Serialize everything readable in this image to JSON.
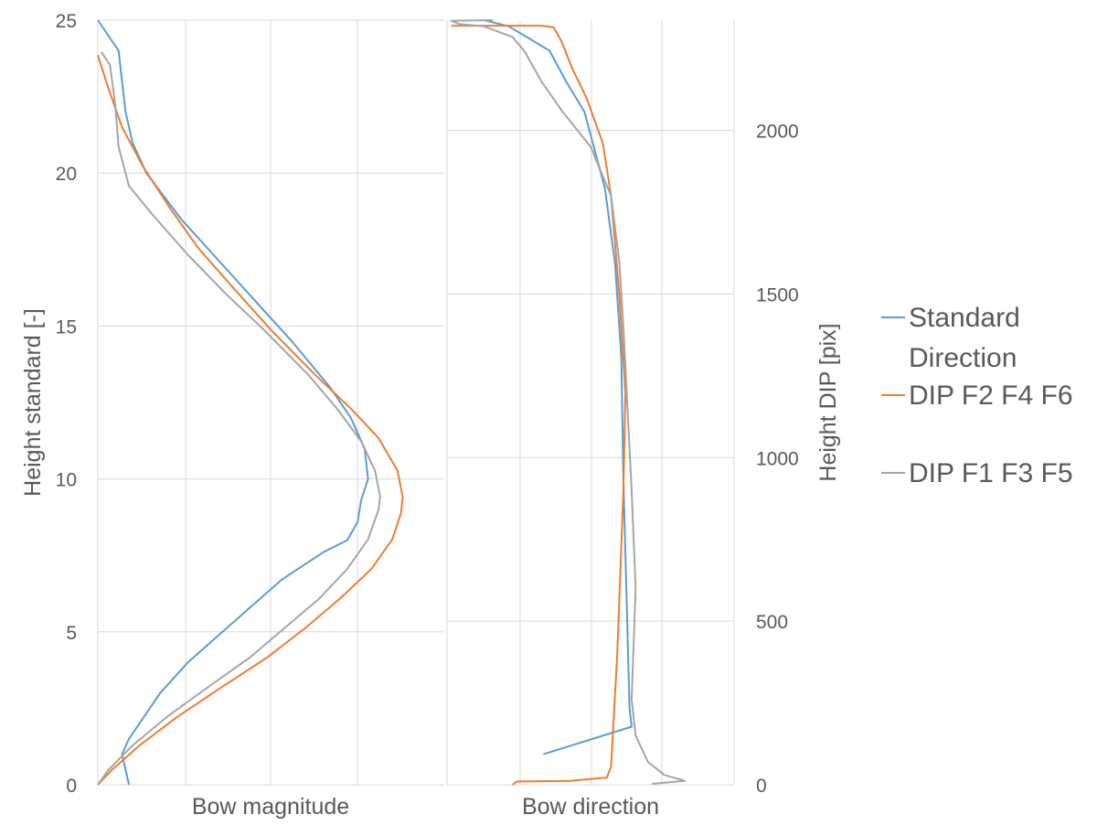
{
  "chart_data": [
    {
      "type": "line",
      "xlabel": "Bow magnitude",
      "ylabel": "Height standard [-]",
      "ylim": [
        0,
        25
      ],
      "yticks": [
        "0",
        "5",
        "10",
        "15",
        "20",
        "25"
      ],
      "grid": true,
      "series": [
        {
          "name": "Standard Direction",
          "color": "#5b9bd5",
          "axis": "left",
          "points": [
            [
              0.9,
              0
            ],
            [
              0.7,
              1
            ],
            [
              0.9,
              1.5
            ],
            [
              1.2,
              2
            ],
            [
              1.8,
              3
            ],
            [
              2.6,
              4
            ],
            [
              3.6,
              5
            ],
            [
              4.6,
              6
            ],
            [
              5.3,
              6.7
            ],
            [
              5.7,
              7
            ],
            [
              6.5,
              7.6
            ],
            [
              7.2,
              8
            ],
            [
              7.5,
              8.6
            ],
            [
              7.6,
              9.3
            ],
            [
              7.8,
              10
            ],
            [
              7.7,
              11
            ],
            [
              7.3,
              12
            ],
            [
              6.7,
              13
            ],
            [
              5.6,
              14.5
            ],
            [
              4.8,
              15.5
            ],
            [
              3.6,
              17
            ],
            [
              2.4,
              18.5
            ],
            [
              1.4,
              20
            ],
            [
              1.0,
              21
            ],
            [
              0.8,
              22
            ],
            [
              0.7,
              23
            ],
            [
              0.6,
              24
            ],
            [
              0.0,
              25
            ]
          ]
        },
        {
          "name": "DIP F2 F4 F6",
          "color": "#ed7d31",
          "axis": "right",
          "points": [
            [
              0.0,
              0
            ],
            [
              0.4,
              45
            ],
            [
              1.2,
              120
            ],
            [
              2.3,
              208
            ],
            [
              3.6,
              300
            ],
            [
              4.9,
              390
            ],
            [
              6.0,
              480
            ],
            [
              7.0,
              570
            ],
            [
              7.9,
              660
            ],
            [
              8.5,
              750
            ],
            [
              8.75,
              830
            ],
            [
              8.8,
              880
            ],
            [
              8.65,
              960
            ],
            [
              8.1,
              1060
            ],
            [
              7.3,
              1150
            ],
            [
              6.3,
              1250
            ],
            [
              5.0,
              1390
            ],
            [
              3.9,
              1520
            ],
            [
              2.9,
              1640
            ],
            [
              2.1,
              1760
            ],
            [
              1.3,
              1890
            ],
            [
              0.7,
              2010
            ],
            [
              0.3,
              2130
            ],
            [
              0.0,
              2230
            ]
          ]
        },
        {
          "name": "DIP F1 F3 F5",
          "color": "#a5a5a5",
          "axis": "right",
          "points": [
            [
              0.0,
              0
            ],
            [
              0.3,
              45
            ],
            [
              1.0,
              120
            ],
            [
              2.0,
              208
            ],
            [
              3.2,
              300
            ],
            [
              4.4,
              390
            ],
            [
              5.4,
              480
            ],
            [
              6.4,
              570
            ],
            [
              7.2,
              660
            ],
            [
              7.8,
              750
            ],
            [
              8.1,
              840
            ],
            [
              8.15,
              880
            ],
            [
              8.0,
              960
            ],
            [
              7.6,
              1050
            ],
            [
              6.9,
              1150
            ],
            [
              6.1,
              1250
            ],
            [
              4.8,
              1390
            ],
            [
              3.7,
              1500
            ],
            [
              2.6,
              1620
            ],
            [
              1.6,
              1740
            ],
            [
              0.9,
              1830
            ],
            [
              0.6,
              1950
            ],
            [
              0.5,
              2080
            ],
            [
              0.35,
              2200
            ],
            [
              0.1,
              2240
            ]
          ]
        }
      ]
    },
    {
      "type": "line",
      "xlabel": "Bow direction",
      "ylabel": "Height DIP [pix]",
      "ylim": [
        0,
        2337
      ],
      "yticks": [
        "0",
        "500",
        "1000",
        "1500",
        "2000"
      ],
      "grid": true,
      "series": [
        {
          "name": "Standard Direction",
          "color": "#5b9bd5",
          "axis": "left",
          "points": [
            [
              2.35,
              1
            ],
            [
              4.5,
              1.9
            ],
            [
              4.45,
              2.5
            ],
            [
              4.4,
              5
            ],
            [
              4.3,
              10
            ],
            [
              4.25,
              14
            ],
            [
              4.1,
              17
            ],
            [
              3.85,
              19.5
            ],
            [
              3.35,
              22
            ],
            [
              2.9,
              23
            ],
            [
              2.5,
              24
            ],
            [
              1.5,
              24.8
            ],
            [
              0.9,
              25
            ]
          ]
        },
        {
          "name": "DIP F2 F4 F6",
          "color": "#ed7d31",
          "axis": "right",
          "points": [
            [
              1.6,
              0
            ],
            [
              1.7,
              10
            ],
            [
              3.0,
              12
            ],
            [
              3.9,
              22
            ],
            [
              4.0,
              55
            ],
            [
              4.15,
              400
            ],
            [
              4.3,
              900
            ],
            [
              4.35,
              1200
            ],
            [
              4.2,
              1500
            ],
            [
              4.0,
              1800
            ],
            [
              3.8,
              1960
            ],
            [
              3.4,
              2100
            ],
            [
              3.05,
              2190
            ],
            [
              2.8,
              2270
            ],
            [
              2.6,
              2315
            ],
            [
              2.3,
              2320
            ],
            [
              0.1,
              2320
            ]
          ]
        },
        {
          "name": "DIP F1 F3 F5",
          "color": "#a5a5a5",
          "axis": "right",
          "points": [
            [
              5.0,
              3
            ],
            [
              5.8,
              12
            ],
            [
              5.3,
              30
            ],
            [
              4.9,
              70
            ],
            [
              4.6,
              150
            ],
            [
              4.5,
              260
            ],
            [
              4.6,
              600
            ],
            [
              4.5,
              900
            ],
            [
              4.4,
              1150
            ],
            [
              4.3,
              1400
            ],
            [
              4.2,
              1600
            ],
            [
              4.0,
              1800
            ],
            [
              3.5,
              1950
            ],
            [
              2.8,
              2060
            ],
            [
              2.3,
              2150
            ],
            [
              1.9,
              2240
            ],
            [
              1.6,
              2285
            ],
            [
              0.9,
              2318
            ],
            [
              0.3,
              2325
            ],
            [
              0.1,
              2335
            ],
            [
              1.1,
              2337
            ],
            [
              0.1,
              2335
            ]
          ]
        }
      ]
    }
  ],
  "legend": {
    "placement": "right",
    "items": [
      {
        "lines": [
          "Standard",
          "Direction"
        ],
        "color": "#5b9bd5"
      },
      {
        "lines": [
          "DIP F2 F4 F6"
        ],
        "color": "#ed7d31"
      },
      {
        "lines": [
          "DIP F1 F3 F5"
        ],
        "color": "#a5a5a5"
      }
    ]
  }
}
